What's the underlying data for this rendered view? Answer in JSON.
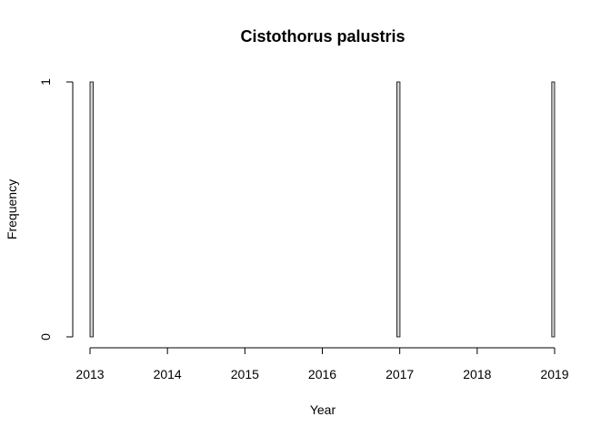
{
  "chart_data": {
    "type": "bar",
    "title": "Cistothorus palustris",
    "xlabel": "Year",
    "ylabel": "Frequency",
    "x_ticks": [
      "2013",
      "2014",
      "2015",
      "2016",
      "2017",
      "2018",
      "2019"
    ],
    "y_ticks": [
      "0",
      "1"
    ],
    "xlim": [
      2013,
      2019
    ],
    "ylim": [
      0,
      1
    ],
    "bin_width_years": 0.0417,
    "bar_fill": "#d3d3d3",
    "bar_stroke": "#000000",
    "nonzero_bins": [
      {
        "start": 2013.0,
        "end": 2013.0417,
        "count": 1
      },
      {
        "start": 2016.9583,
        "end": 2017.0,
        "count": 1
      },
      {
        "start": 2018.9583,
        "end": 2019.0,
        "count": 1
      }
    ]
  }
}
